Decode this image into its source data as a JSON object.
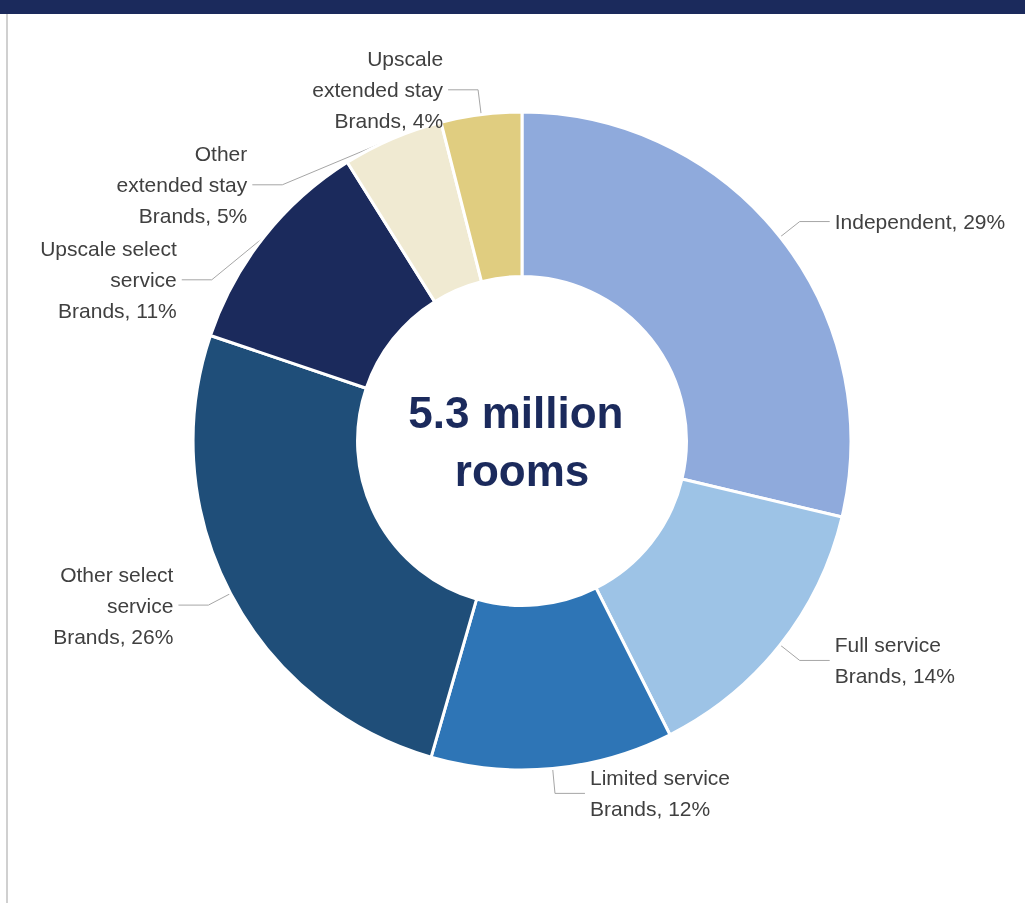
{
  "chart_data": {
    "type": "donut",
    "categories": [
      "Independent",
      "Full service Brands",
      "Limited service Brands",
      "Other select service Brands",
      "Upscale select service Brands",
      "Other extended stay Brands",
      "Upscale extended stay Brands"
    ],
    "values": [
      29,
      14,
      12,
      26,
      11,
      5,
      4
    ],
    "value_labels": [
      "29%",
      "14%",
      "12%",
      "26%",
      "11%",
      "5%",
      "4%"
    ],
    "colors": [
      "#8faadc",
      "#9dc3e6",
      "#2e75b6",
      "#1f4e79",
      "#1b2a5c",
      "#f0ead2",
      "#e0cd80"
    ],
    "annotations": [
      "5.3 million rooms"
    ],
    "legend": false
  }
}
